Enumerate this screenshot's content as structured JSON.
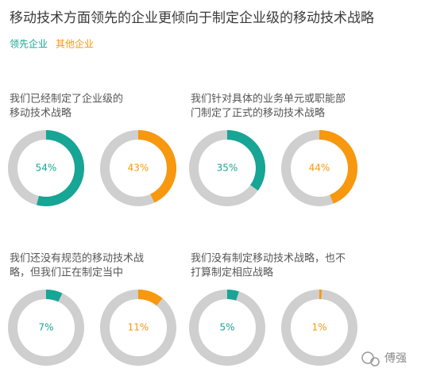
{
  "title": "移动技术方面领先的企业更倾向于制定企业级的移动技术战略",
  "watermark": "傅强",
  "chart_data": [
    {
      "type": "donut",
      "title": [
        "我们已经制定了企业级的",
        "移动技术战略"
      ],
      "series": [
        {
          "name": "领先企业",
          "color": "#17a595",
          "values": [
            54
          ],
          "value_labels": [
            "54%"
          ]
        },
        {
          "name": "其他企业",
          "color": "#f7980f",
          "values": [
            43
          ],
          "value_labels": [
            "43%"
          ]
        }
      ]
    },
    {
      "type": "donut",
      "title": [
        "我们针对具体的业务单元或职能部",
        "门制定了正式的移动技术战略"
      ],
      "series": [
        {
          "name": "领先企业",
          "color": "#17a595",
          "values": [
            35
          ],
          "value_labels": [
            "35%"
          ]
        },
        {
          "name": "其他企业",
          "color": "#f7980f",
          "values": [
            44
          ],
          "value_labels": [
            "44%"
          ]
        }
      ]
    },
    {
      "type": "donut",
      "title": [
        "我们还没有规范的移动技术战",
        "略，但我们正在制定当中"
      ],
      "series": [
        {
          "name": "领先企业",
          "color": "#17a595",
          "values": [
            7
          ],
          "value_labels": [
            "7%"
          ]
        },
        {
          "name": "其他企业",
          "color": "#f7980f",
          "values": [
            11
          ],
          "value_labels": [
            "11%"
          ]
        }
      ]
    },
    {
      "type": "donut",
      "title": [
        "我们没有制定移动技术战略，也不",
        "打算制定相应战略"
      ],
      "series": [
        {
          "name": "领先企业",
          "color": "#17a595",
          "values": [
            5
          ],
          "value_labels": [
            "5%"
          ]
        },
        {
          "name": "其他企业",
          "color": "#f7980f",
          "values": [
            1
          ],
          "value_labels": [
            "1%"
          ]
        }
      ]
    }
  ]
}
